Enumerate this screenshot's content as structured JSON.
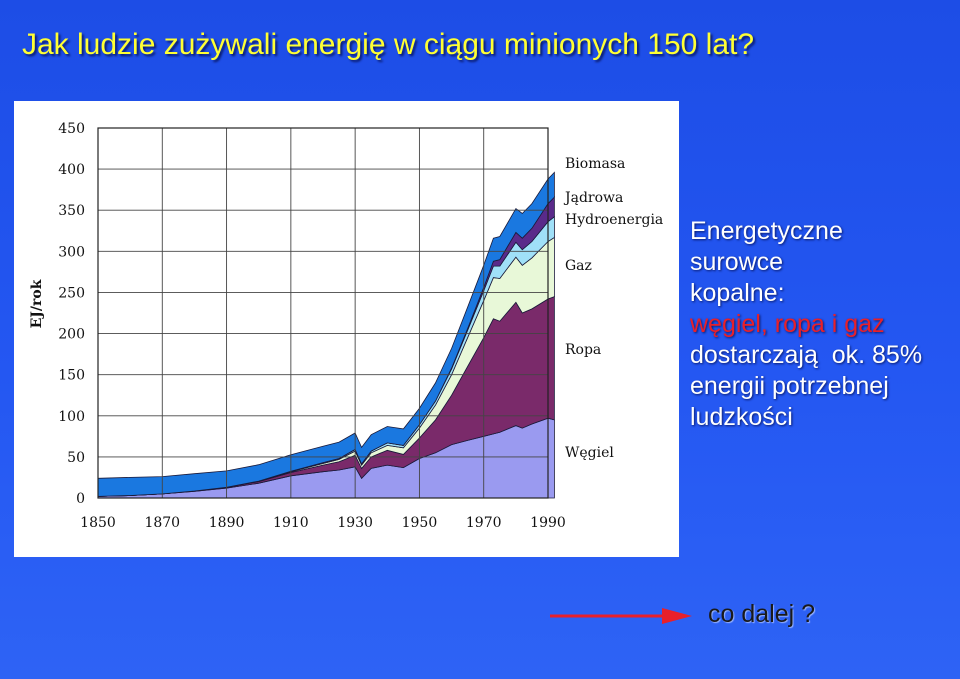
{
  "slide": {
    "title": "Jak ludzie zużywali energię w ciągu minionych 150 lat?",
    "note": {
      "line1": "Energetyczne",
      "line2": "surowce",
      "line3": "kopalne:",
      "line4": "węgiel, ropa i gaz",
      "line5": "dostarczają  ok. 85%",
      "line6": "energii potrzebnej",
      "line7": "ludzkości"
    },
    "cta": "co dalej ?"
  },
  "colors": {
    "background": "#2457f2",
    "title": "#ffff33",
    "note_highlight": "#e8202a",
    "arrow": "#e8202a"
  },
  "chart_data": {
    "type": "area",
    "stacked": true,
    "ylabel": "EJ/rok",
    "ylim": [
      0,
      450
    ],
    "xlim": [
      1850,
      1992
    ],
    "xticks": [
      "1850",
      "1870",
      "1890",
      "1910",
      "1930",
      "1950",
      "1970",
      "1990"
    ],
    "yticks": [
      "0",
      "50",
      "100",
      "150",
      "200",
      "250",
      "300",
      "350",
      "400",
      "450"
    ],
    "grid": true,
    "legend": "right",
    "x": [
      1850,
      1860,
      1870,
      1880,
      1890,
      1900,
      1910,
      1920,
      1925,
      1930,
      1932,
      1935,
      1940,
      1945,
      1950,
      1955,
      1960,
      1965,
      1970,
      1973,
      1975,
      1980,
      1982,
      1985,
      1990,
      1992
    ],
    "series": [
      {
        "name": "Węgiel",
        "color": "#9a9af0",
        "values": [
          2,
          3,
          5,
          8,
          12,
          18,
          27,
          32,
          34,
          38,
          24,
          36,
          40,
          37,
          48,
          55,
          65,
          70,
          75,
          78,
          80,
          88,
          85,
          90,
          97,
          95
        ]
      },
      {
        "name": "Ropa",
        "color": "#7a2a6a",
        "values": [
          0,
          0,
          0,
          0.5,
          1,
          2,
          4,
          8,
          10,
          14,
          12,
          14,
          18,
          16,
          25,
          40,
          60,
          90,
          120,
          140,
          135,
          150,
          140,
          140,
          145,
          150
        ]
      },
      {
        "name": "Gaz",
        "color": "#e8f8d8",
        "values": [
          0,
          0,
          0,
          0,
          0,
          0.5,
          1,
          2,
          3,
          5,
          4,
          5,
          6,
          8,
          12,
          18,
          25,
          35,
          45,
          50,
          52,
          55,
          58,
          62,
          70,
          72
        ]
      },
      {
        "name": "Hydroenergia",
        "color": "#a0e0f8",
        "values": [
          0,
          0,
          0,
          0,
          0,
          0,
          0.5,
          1,
          1,
          2,
          1.5,
          2,
          3,
          3,
          4,
          5,
          7,
          9,
          12,
          14,
          15,
          18,
          19,
          20,
          24,
          25
        ]
      },
      {
        "name": "Jądrowa",
        "color": "#5a2a8a",
        "values": [
          0,
          0,
          0,
          0,
          0,
          0,
          0,
          0,
          0,
          0,
          0,
          0,
          0,
          0,
          0,
          0,
          1,
          2,
          4,
          6,
          8,
          12,
          14,
          16,
          22,
          24
        ]
      },
      {
        "name": "Biomasa",
        "color": "#1a78e0",
        "values": [
          22,
          22,
          21,
          21,
          20,
          20,
          20,
          20,
          20,
          20,
          20,
          20,
          20,
          20,
          20,
          22,
          24,
          26,
          27,
          28,
          28,
          29,
          30,
          30,
          30,
          30
        ]
      }
    ]
  }
}
